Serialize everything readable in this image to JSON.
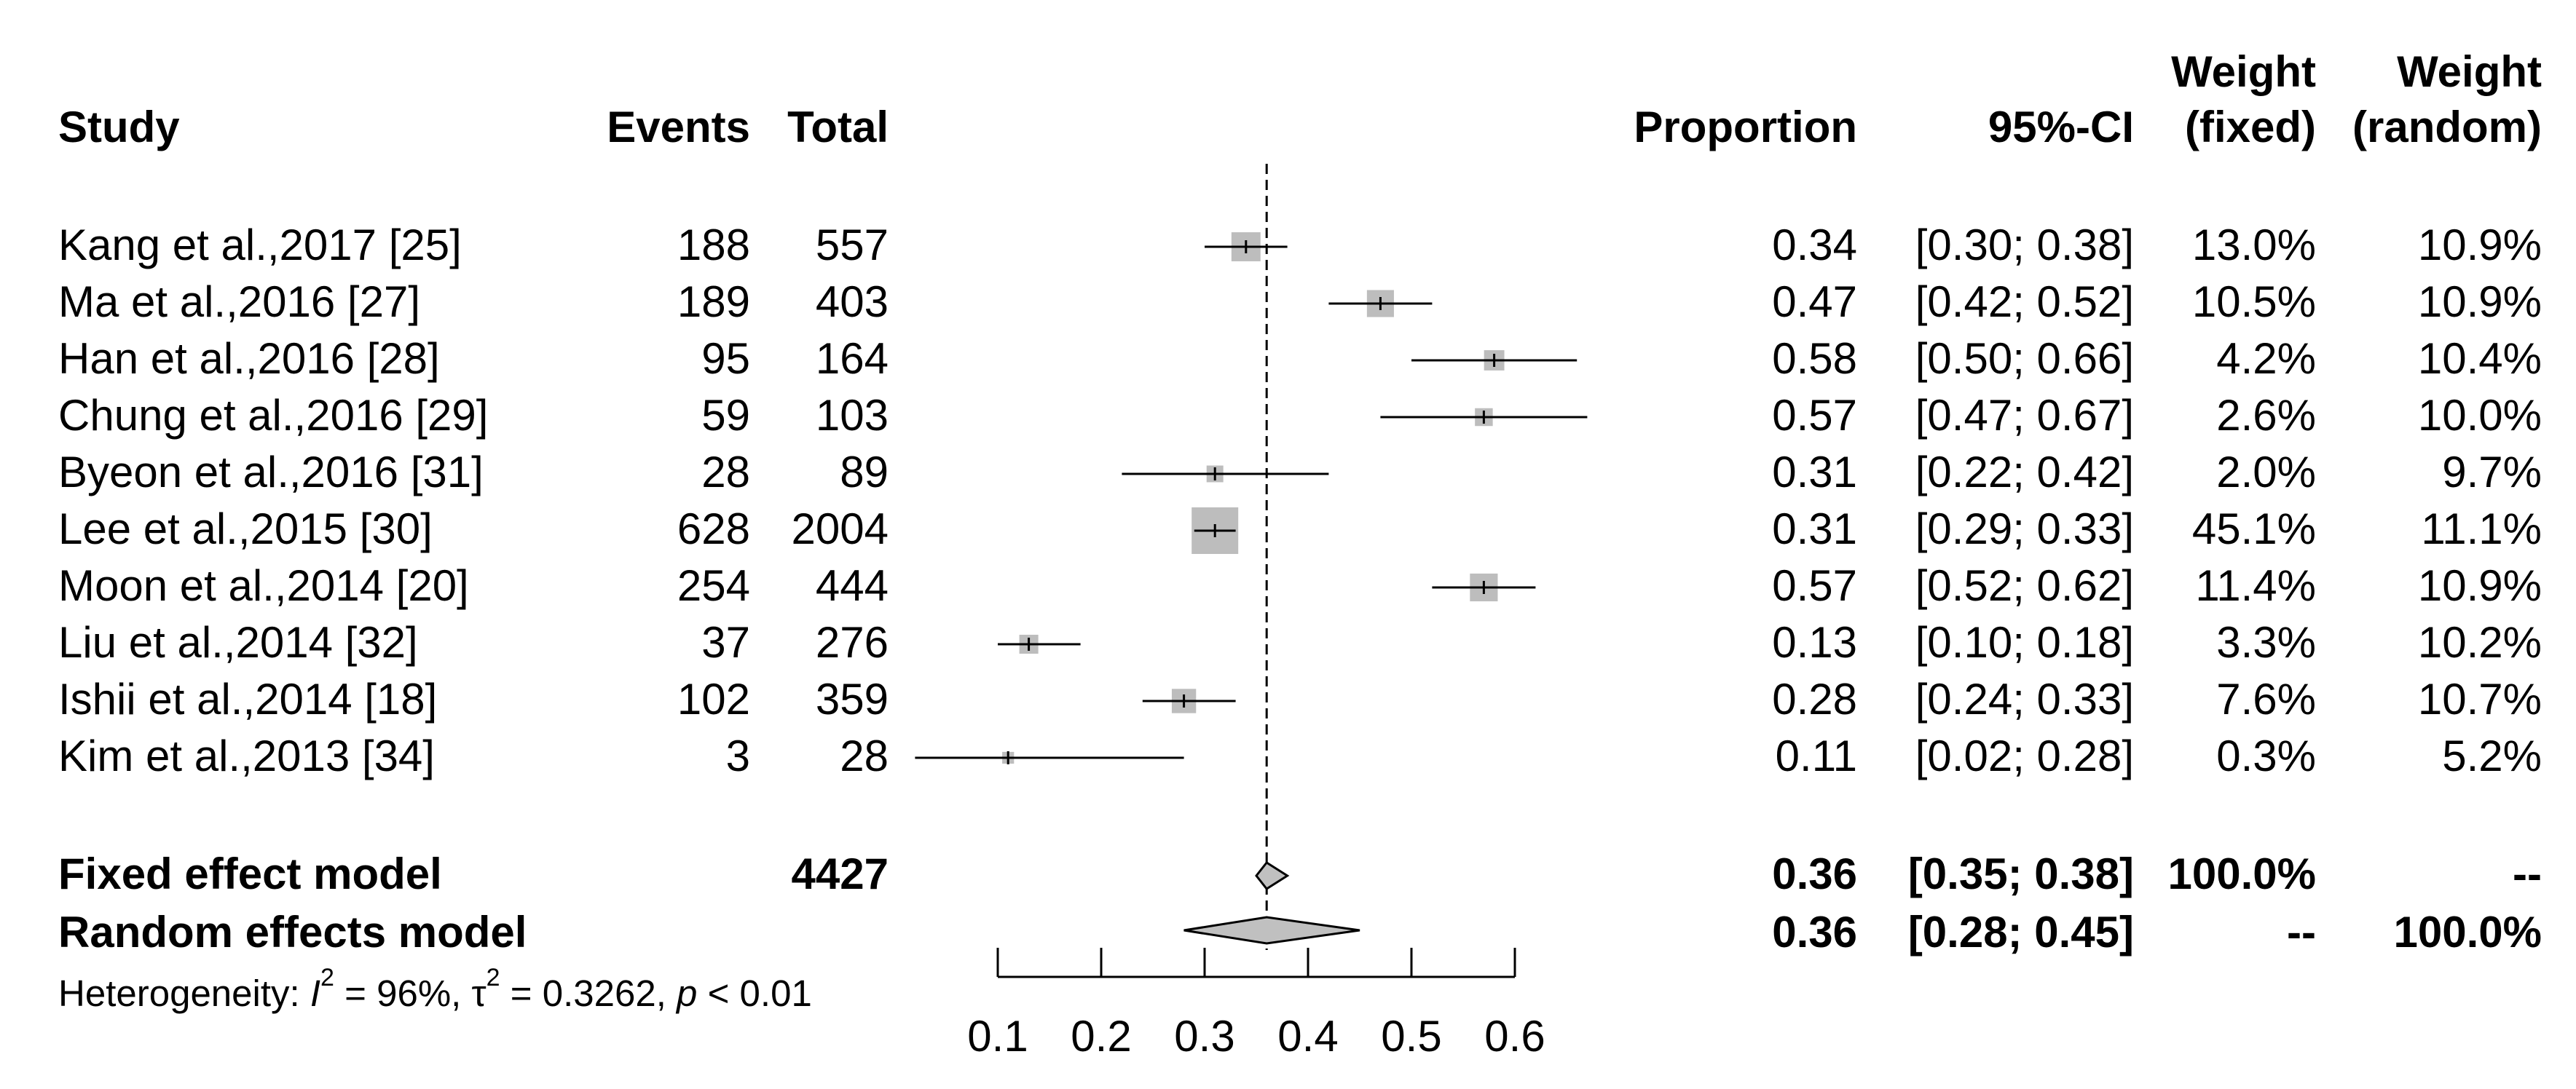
{
  "headers": {
    "study": "Study",
    "events": "Events",
    "total": "Total",
    "proportion": "Proportion",
    "ci": "95%-CI",
    "weight": "Weight",
    "fixed": "(fixed)",
    "random": "(random)"
  },
  "rows": [
    {
      "study": "Kang et al.,2017 [25]",
      "events": "188",
      "total": "557",
      "prop": "0.34",
      "ci": "[0.30; 0.38]",
      "wf": "13.0%",
      "wr": "10.9%"
    },
    {
      "study": "Ma et al.,2016 [27]",
      "events": "189",
      "total": "403",
      "prop": "0.47",
      "ci": "[0.42; 0.52]",
      "wf": "10.5%",
      "wr": "10.9%"
    },
    {
      "study": "Han et al.,2016 [28]",
      "events": "95",
      "total": "164",
      "prop": "0.58",
      "ci": "[0.50; 0.66]",
      "wf": "4.2%",
      "wr": "10.4%"
    },
    {
      "study": "Chung et al.,2016 [29]",
      "events": "59",
      "total": "103",
      "prop": "0.57",
      "ci": "[0.47; 0.67]",
      "wf": "2.6%",
      "wr": "10.0%"
    },
    {
      "study": "Byeon et al.,2016 [31]",
      "events": "28",
      "total": "89",
      "prop": "0.31",
      "ci": "[0.22; 0.42]",
      "wf": "2.0%",
      "wr": "9.7%"
    },
    {
      "study": "Lee et al.,2015 [30]",
      "events": "628",
      "total": "2004",
      "prop": "0.31",
      "ci": "[0.29; 0.33]",
      "wf": "45.1%",
      "wr": "11.1%"
    },
    {
      "study": "Moon et al.,2014 [20]",
      "events": "254",
      "total": "444",
      "prop": "0.57",
      "ci": "[0.52; 0.62]",
      "wf": "11.4%",
      "wr": "10.9%"
    },
    {
      "study": "Liu et al.,2014 [32]",
      "events": "37",
      "total": "276",
      "prop": "0.13",
      "ci": "[0.10; 0.18]",
      "wf": "3.3%",
      "wr": "10.2%"
    },
    {
      "study": "Ishii et al.,2014 [18]",
      "events": "102",
      "total": "359",
      "prop": "0.28",
      "ci": "[0.24; 0.33]",
      "wf": "7.6%",
      "wr": "10.7%"
    },
    {
      "study": "Kim et al.,2013 [34]",
      "events": "3",
      "total": "28",
      "prop": "0.11",
      "ci": "[0.02; 0.28]",
      "wf": "0.3%",
      "wr": "5.2%"
    }
  ],
  "fixed": {
    "label": "Fixed effect model",
    "total": "4427",
    "prop": "0.36",
    "ci": "[0.35; 0.38]",
    "wf": "100.0%",
    "wr": "--"
  },
  "random": {
    "label": "Random effects model",
    "prop": "0.36",
    "ci": "[0.28; 0.45]",
    "wf": "--",
    "wr": "100.0%"
  },
  "heterogeneity": {
    "prefix": "Heterogeneity: ",
    "i": "I",
    "i_exp": "2",
    "i_val": " = 96%, ",
    "tau": "τ",
    "tau_exp": "2",
    "tau_val": " = 0.3262, ",
    "p": "p",
    "p_val": " < 0.01"
  },
  "chart_data": {
    "type": "forest",
    "xlim": [
      0.1,
      0.6
    ],
    "ticks": [
      0.1,
      0.2,
      0.3,
      0.4,
      0.5,
      0.6
    ],
    "tick_labels": [
      "0.1",
      "0.2",
      "0.3",
      "0.4",
      "0.5",
      "0.6"
    ],
    "clip_upper": 0.65,
    "studies": [
      {
        "est": 0.34,
        "lo": 0.3,
        "hi": 0.38,
        "weight_fixed": 13.0
      },
      {
        "est": 0.47,
        "lo": 0.42,
        "hi": 0.52,
        "weight_fixed": 10.5
      },
      {
        "est": 0.58,
        "lo": 0.5,
        "hi": 0.66,
        "weight_fixed": 4.2
      },
      {
        "est": 0.57,
        "lo": 0.47,
        "hi": 0.67,
        "weight_fixed": 2.6
      },
      {
        "est": 0.31,
        "lo": 0.22,
        "hi": 0.42,
        "weight_fixed": 2.0
      },
      {
        "est": 0.31,
        "lo": 0.29,
        "hi": 0.33,
        "weight_fixed": 45.1
      },
      {
        "est": 0.57,
        "lo": 0.52,
        "hi": 0.62,
        "weight_fixed": 11.4
      },
      {
        "est": 0.13,
        "lo": 0.1,
        "hi": 0.18,
        "weight_fixed": 3.3
      },
      {
        "est": 0.28,
        "lo": 0.24,
        "hi": 0.33,
        "weight_fixed": 7.6
      },
      {
        "est": 0.11,
        "lo": 0.02,
        "hi": 0.28,
        "weight_fixed": 0.3
      }
    ],
    "fixed_effect": {
      "est": 0.36,
      "lo": 0.35,
      "hi": 0.38
    },
    "random_effect": {
      "est": 0.36,
      "lo": 0.28,
      "hi": 0.45
    },
    "reference_line": 0.36,
    "colors": {
      "square": "#bdbdbd",
      "diamond": "#c0c0c0",
      "line": "#000000"
    }
  }
}
